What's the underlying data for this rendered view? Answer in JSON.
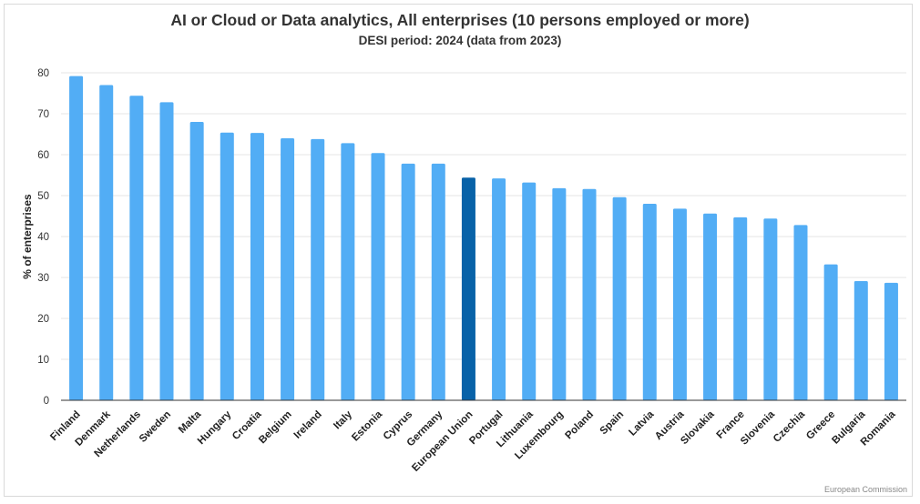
{
  "chart_data": {
    "type": "bar",
    "title": "AI or Cloud or Data analytics, All enterprises (10 persons employed or more)",
    "subtitle": "DESI period: 2024 (data from 2023)",
    "xlabel": "",
    "ylabel": "% of enterprises",
    "ylim": [
      0,
      80
    ],
    "yticks": [
      0,
      10,
      20,
      30,
      40,
      50,
      60,
      70,
      80
    ],
    "grid": true,
    "categories": [
      "Finland",
      "Denmark",
      "Netherlands",
      "Sweden",
      "Malta",
      "Hungary",
      "Croatia",
      "Belgium",
      "Ireland",
      "Italy",
      "Estonia",
      "Cyprus",
      "Germany",
      "European Union",
      "Portugal",
      "Lithuania",
      "Luxembourg",
      "Poland",
      "Spain",
      "Latvia",
      "Austria",
      "Slovakia",
      "France",
      "Slovenia",
      "Czechia",
      "Greece",
      "Bulgaria",
      "Romania"
    ],
    "values": [
      79.2,
      77.0,
      74.4,
      72.8,
      68.0,
      65.4,
      65.3,
      64.0,
      63.8,
      62.8,
      60.4,
      57.8,
      57.8,
      54.4,
      54.2,
      53.2,
      51.8,
      51.6,
      49.6,
      48.0,
      46.8,
      45.6,
      44.7,
      44.4,
      42.8,
      33.2,
      29.1,
      28.7
    ],
    "highlight": "European Union",
    "colors": {
      "bar": "#52adf5",
      "highlight": "#0862a8",
      "grid": "#e6e6e6",
      "axis": "#333333"
    }
  },
  "credit": "European Commission"
}
